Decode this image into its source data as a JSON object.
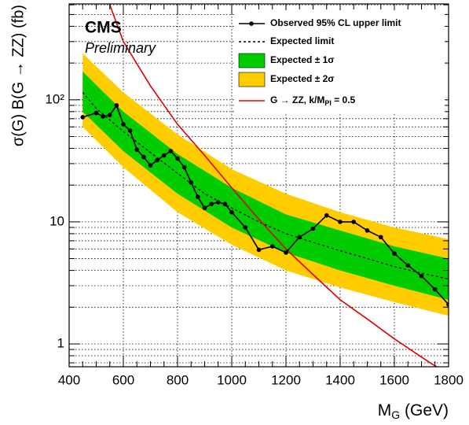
{
  "chart_data": {
    "type": "line",
    "cms_label": "CMS",
    "status_label": "Preliminary",
    "x_label": {
      "text": "M",
      "subscript": "G",
      "suffix": " (GeV)"
    },
    "y_label": "σ(G) B(G → ZZ) (fb)",
    "xlim": [
      400,
      1800
    ],
    "xticks": [
      400,
      600,
      800,
      1000,
      1200,
      1400,
      1600,
      1800
    ],
    "xminorticks": [
      450,
      500,
      550,
      650,
      700,
      750,
      850,
      900,
      950,
      1050,
      1100,
      1150,
      1250,
      1300,
      1350,
      1450,
      1500,
      1550,
      1650,
      1700,
      1750
    ],
    "ylim": [
      0.65,
      610
    ],
    "yticks": [
      1,
      10,
      {
        "value": 100,
        "label": "10²"
      }
    ],
    "yminorticks": [
      0.7,
      0.8,
      0.9,
      2,
      3,
      4,
      5,
      6,
      7,
      8,
      9,
      20,
      30,
      40,
      50,
      60,
      70,
      80,
      90,
      200,
      300,
      400,
      500,
      600
    ],
    "log_y": true,
    "grid": true,
    "legend": "top-right",
    "series": [
      {
        "name": "Observed 95% CL upper limit",
        "color": "#000000",
        "style": "markers",
        "x": [
          450,
          500,
          525,
          550,
          575,
          600,
          625,
          650,
          675,
          700,
          725,
          750,
          775,
          800,
          825,
          850,
          875,
          900,
          925,
          950,
          975,
          1000,
          1050,
          1100,
          1150,
          1200,
          1250,
          1300,
          1350,
          1400,
          1450,
          1500,
          1550,
          1600,
          1650,
          1700,
          1750,
          1800
        ],
        "values": [
          72,
          78,
          73,
          75,
          90,
          63,
          56,
          39,
          34,
          29,
          32,
          35,
          38,
          33,
          28,
          21,
          16,
          13,
          14,
          14.5,
          14,
          12,
          9,
          5.9,
          6.3,
          5.6,
          7.5,
          8.8,
          11.3,
          10,
          10,
          8.5,
          7.5,
          5.5,
          4.4,
          3.6,
          2.8,
          2.1
        ]
      },
      {
        "name": "Expected limit",
        "color": "#000000",
        "style": "dashed",
        "x": [
          450,
          500,
          600,
          700,
          800,
          900,
          1000,
          1100,
          1200,
          1300,
          1400,
          1500,
          1600,
          1700,
          1800
        ],
        "values": [
          115,
          85,
          55,
          37,
          25,
          17,
          13,
          10,
          8,
          6.8,
          5.8,
          5,
          4.3,
          3.8,
          3.4
        ]
      },
      {
        "name": "Expected ± 1σ",
        "color": "#00cc00",
        "style": "band",
        "x": [
          450,
          600,
          800,
          1000,
          1200,
          1400,
          1600,
          1800
        ],
        "low": [
          80,
          38,
          17,
          9,
          5.6,
          4,
          3,
          2.3
        ],
        "high": [
          170,
          80,
          36,
          19,
          11.5,
          8.5,
          6.3,
          5
        ]
      },
      {
        "name": "Expected ± 2σ",
        "color": "#ffcc00",
        "style": "band",
        "x": [
          450,
          600,
          800,
          1000,
          1200,
          1400,
          1600,
          1800
        ],
        "low": [
          60,
          28,
          12,
          6.5,
          4,
          2.9,
          2.2,
          1.7
        ],
        "high": [
          240,
          115,
          52,
          27,
          17,
          12,
          9,
          7.2
        ]
      },
      {
        "name": "G → ZZ, k/M",
        "name_subscript": "Pl",
        "name_suffix": " = 0.5",
        "color": "#e00000",
        "style": "solid",
        "x": [
          550,
          600,
          700,
          800,
          900,
          1000,
          1100,
          1200,
          1300,
          1400,
          1500,
          1600,
          1700,
          1800
        ],
        "values": [
          600,
          300,
          130,
          63,
          35,
          19,
          10.5,
          6,
          3.7,
          2.3,
          1.6,
          1.1,
          0.78,
          0.56
        ]
      }
    ]
  }
}
